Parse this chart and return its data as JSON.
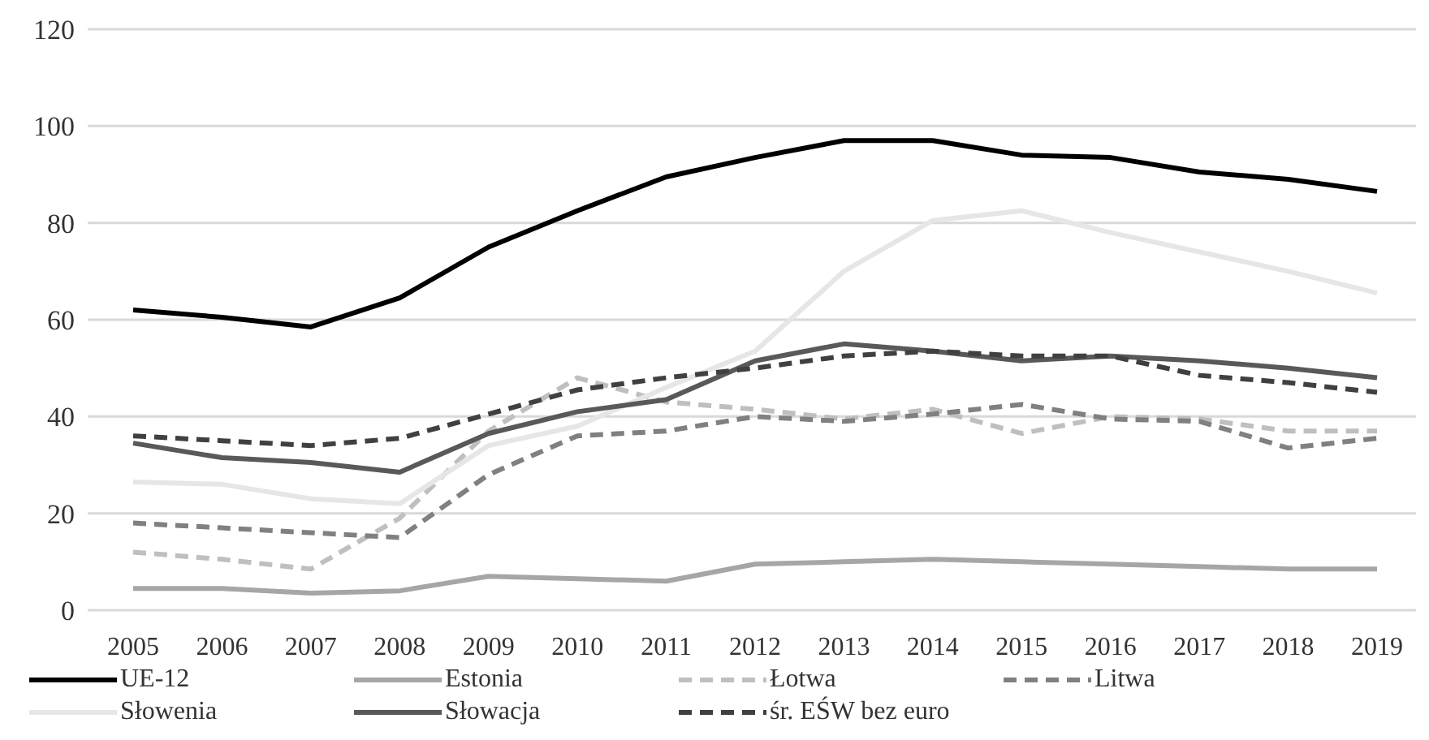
{
  "chart_data": {
    "type": "line",
    "categories": [
      "2005",
      "2006",
      "2007",
      "2008",
      "2009",
      "2010",
      "2011",
      "2012",
      "2013",
      "2014",
      "2015",
      "2016",
      "2017",
      "2018",
      "2019"
    ],
    "series": [
      {
        "name": "UE-12",
        "color": "#000000",
        "line_style": "solid",
        "values": [
          62,
          60.5,
          58.5,
          64.5,
          75,
          82.5,
          89.5,
          93.5,
          97,
          97,
          94,
          93.5,
          90.5,
          89,
          86.5
        ]
      },
      {
        "name": "Estonia",
        "color": "#a6a6a6",
        "line_style": "solid",
        "values": [
          4.5,
          4.5,
          3.5,
          4,
          7,
          6.5,
          6,
          9.5,
          10,
          10.5,
          10,
          9.5,
          9,
          8.5,
          8.5
        ]
      },
      {
        "name": "Łotwa",
        "color": "#bfbfbf",
        "line_style": "dashed",
        "values": [
          12,
          10.5,
          8.5,
          19,
          37,
          48,
          43,
          41.5,
          39.5,
          41.5,
          36.5,
          40,
          39.5,
          37,
          37
        ]
      },
      {
        "name": "Litwa",
        "color": "#808080",
        "line_style": "dashed",
        "values": [
          18,
          17,
          16,
          15,
          28,
          36,
          37,
          40,
          39,
          40.5,
          42.5,
          39.5,
          39,
          33.5,
          35.5
        ]
      },
      {
        "name": "Słowenia",
        "color": "#e7e6e6",
        "line_style": "solid",
        "values": [
          26.5,
          26,
          23,
          22,
          34,
          38,
          46,
          53.5,
          70,
          80.5,
          82.5,
          78,
          74,
          70,
          65.5
        ]
      },
      {
        "name": "Słowacja",
        "color": "#595959",
        "line_style": "solid",
        "values": [
          34.5,
          31.5,
          30.5,
          28.5,
          36.5,
          41,
          43.5,
          51.5,
          55,
          53.5,
          51.5,
          52.5,
          51.5,
          50,
          48
        ]
      },
      {
        "name": "śr. EŚW bez euro",
        "color": "#404040",
        "line_style": "dashed",
        "values": [
          36,
          35,
          34,
          35.5,
          40.5,
          45.5,
          48,
          50,
          52.5,
          53.5,
          52.5,
          52.5,
          48.5,
          47,
          45
        ]
      }
    ],
    "ylim": [
      0,
      120
    ],
    "yticks": [
      0,
      20,
      40,
      60,
      80,
      100,
      120
    ],
    "grid": "y",
    "legend": "bottom",
    "marker": "none"
  }
}
